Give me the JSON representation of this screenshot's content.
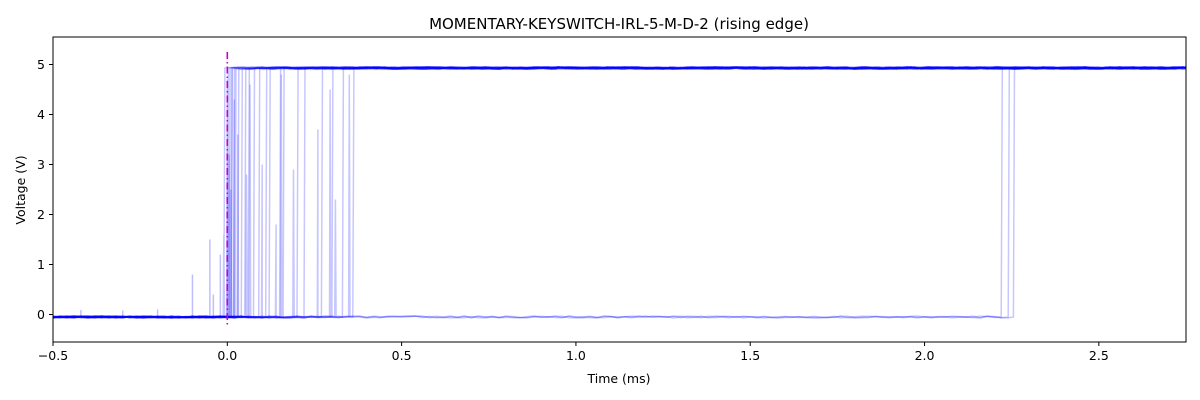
{
  "chart_data": {
    "type": "line",
    "title": "MOMENTARY-KEYSWITCH-IRL-5-M-D-2 (rising edge)",
    "xlabel": "Time (ms)",
    "ylabel": "Voltage (V)",
    "xlim": [
      -0.5,
      2.75
    ],
    "ylim": [
      -0.55,
      5.55
    ],
    "x_ticks": [
      -0.5,
      0.0,
      0.5,
      1.0,
      1.5,
      2.0,
      2.5
    ],
    "x_tick_labels": [
      "−0.5",
      "0.0",
      "0.5",
      "1.0",
      "1.5",
      "2.0",
      "2.5"
    ],
    "y_ticks": [
      0,
      1,
      2,
      3,
      4,
      5
    ],
    "y_tick_labels": [
      "0",
      "1",
      "2",
      "3",
      "4",
      "5"
    ],
    "grid": false,
    "trigger_marker": {
      "x": 0.0,
      "color": "#cc00cc",
      "style": "dashdot"
    },
    "series_color": "#0000ff",
    "low_level": -0.05,
    "high_level": 4.93,
    "traces": [
      {
        "rise_times": [
          -0.01
        ],
        "spikes": [
          [
            -0.01,
            1.6
          ]
        ]
      },
      {
        "rise_times": [
          0.0
        ],
        "spikes": []
      },
      {
        "rise_times": [
          0.005
        ],
        "spikes": [
          [
            0.0,
            4.7
          ]
        ]
      },
      {
        "rise_times": [
          0.01
        ],
        "spikes": [
          [
            0.005,
            3.2
          ]
        ]
      },
      {
        "rise_times": [
          0.012
        ],
        "spikes": []
      },
      {
        "rise_times": [
          0.018
        ],
        "spikes": [
          [
            0.01,
            2.5
          ]
        ]
      },
      {
        "rise_times": [
          0.022
        ],
        "spikes": []
      },
      {
        "rise_times": [
          0.03
        ],
        "spikes": [
          [
            0.02,
            4.3
          ]
        ]
      },
      {
        "rise_times": [
          0.04
        ],
        "spikes": [
          [
            0.03,
            3.6
          ]
        ]
      },
      {
        "rise_times": [
          0.05
        ],
        "spikes": []
      },
      {
        "rise_times": [
          0.06
        ],
        "spikes": [
          [
            0.055,
            2.8
          ]
        ]
      },
      {
        "rise_times": [
          0.075
        ],
        "spikes": [
          [
            0.065,
            4.6
          ]
        ]
      },
      {
        "rise_times": [
          0.09
        ],
        "spikes": []
      },
      {
        "rise_times": [
          0.11
        ],
        "spikes": [
          [
            0.1,
            3.0
          ]
        ]
      },
      {
        "rise_times": [
          0.12
        ],
        "spikes": []
      },
      {
        "rise_times": [
          0.15
        ],
        "spikes": [
          [
            0.14,
            1.8
          ]
        ]
      },
      {
        "rise_times": [
          0.16
        ],
        "spikes": [
          [
            0.155,
            4.8
          ]
        ]
      },
      {
        "rise_times": [
          0.2
        ],
        "spikes": [
          [
            0.19,
            2.9
          ]
        ]
      },
      {
        "rise_times": [
          0.22
        ],
        "spikes": []
      },
      {
        "rise_times": [
          0.27
        ],
        "spikes": [
          [
            0.26,
            3.7
          ]
        ]
      },
      {
        "rise_times": [
          0.3
        ],
        "spikes": [
          [
            0.295,
            4.5
          ]
        ]
      },
      {
        "rise_times": [
          0.33
        ],
        "spikes": [
          [
            0.31,
            2.3
          ]
        ]
      },
      {
        "rise_times": [
          0.36
        ],
        "spikes": [
          [
            0.35,
            4.8
          ]
        ]
      },
      {
        "rise_times": [
          2.22
        ],
        "spikes": []
      },
      {
        "rise_times": [
          2.24
        ],
        "spikes": []
      },
      {
        "rise_times": [
          2.255
        ],
        "spikes": []
      }
    ],
    "pre_trigger_spikes": [
      [
        -0.1,
        0.8
      ],
      [
        -0.05,
        1.5
      ],
      [
        -0.04,
        0.4
      ],
      [
        -0.02,
        1.2
      ],
      [
        -0.2,
        0.1
      ],
      [
        -0.3,
        0.08
      ],
      [
        -0.42,
        0.09
      ]
    ]
  }
}
